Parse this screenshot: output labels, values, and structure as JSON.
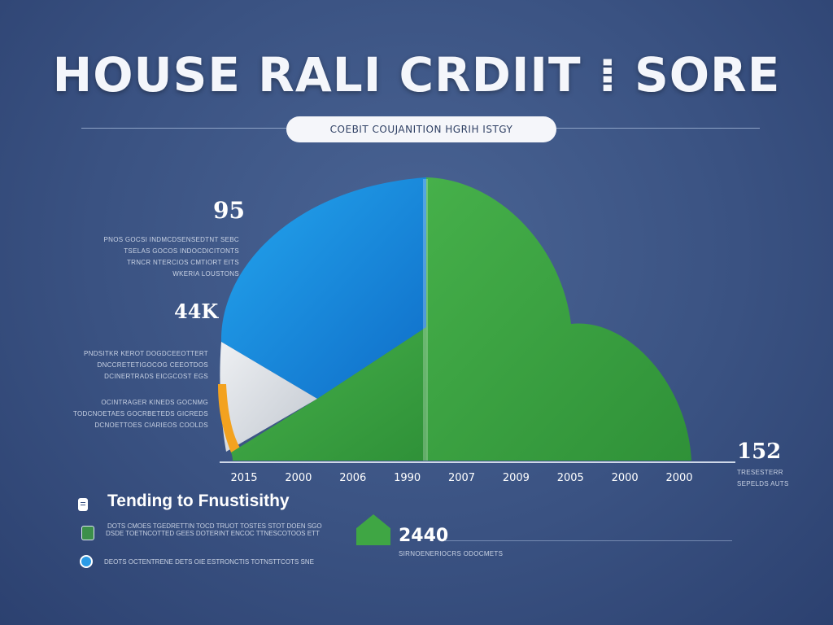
{
  "title": "HOUSE RALI CRDIIT ⁞ SORE",
  "subtitle": "COEBIT COUJANITION HGRIH ISTGY",
  "annotations": {
    "top_value": "95",
    "top_lines": [
      "PNOS GOCSI INDMCDSENSEDTNT SEBC",
      "TSELAS GOCOS INDOCDICITONTS",
      "TRNCR NTERCIOS CMTIORT EITS",
      "WKERIA LOUSTONS"
    ],
    "mid_value": "44K",
    "mid_lines": [
      "PNDSITKR KEROT DOGDCEEOTTERT",
      "DNCCRETETIGOCOG CEEOTDOS",
      "DCINERTRADS EICGCOST EGS"
    ],
    "lower_lines": [
      "OCINTRAGER KINEDS GOCNMG",
      "TODCNOETAES GOCRBETEDS GICREDS",
      "DCNOETTOES CIARIEOS COOLDS"
    ]
  },
  "right_value": "152",
  "right_sublines": [
    "TRESESTERR",
    "SEPELDS AUTS"
  ],
  "legend": {
    "heading": "Tending to Fnustisithy",
    "rows": [
      {
        "icon": "document-icon",
        "text": "DOTS CMOES TGEDRETTIN TOCD TRUOT TOSTES STOT DOEN SGO"
      },
      {
        "icon": "shield-icon",
        "text": "DSDE TOETNCOTTED GEES DOTERINT ENCOC TTNESCOTOOS ETT"
      },
      {
        "icon": "globe-icon",
        "text": "DEOTS OCTENTRENE DETS OIE ESTRONCTIS TOTNSTTCOTS SNE"
      }
    ]
  },
  "stat": {
    "value": "2440",
    "sublabel": "SIRNOENERIOCRS ODOCMETS"
  },
  "colors": {
    "blue": "#1a8fe3",
    "green": "#3fa644",
    "light_gray": "#d9dde3",
    "orange": "#f3a21f",
    "axis": "#cfd8e8"
  },
  "chart_data": {
    "type": "area",
    "title": "HOUSE RALI CRDIIT ⁞ SORE",
    "x_tick_labels": [
      "2015",
      "2000",
      "2006",
      "1990",
      "2007",
      "2009",
      "2005",
      "2000",
      "2000"
    ],
    "regions": [
      {
        "name": "blue",
        "color": "#1a8fe3"
      },
      {
        "name": "green",
        "color": "#3fa644"
      },
      {
        "name": "light_gray",
        "color": "#d9dde3"
      },
      {
        "name": "orange",
        "color": "#f3a21f"
      }
    ],
    "labels_on_chart": [
      "95",
      "44K",
      "152",
      "2440"
    ],
    "grid": false
  }
}
